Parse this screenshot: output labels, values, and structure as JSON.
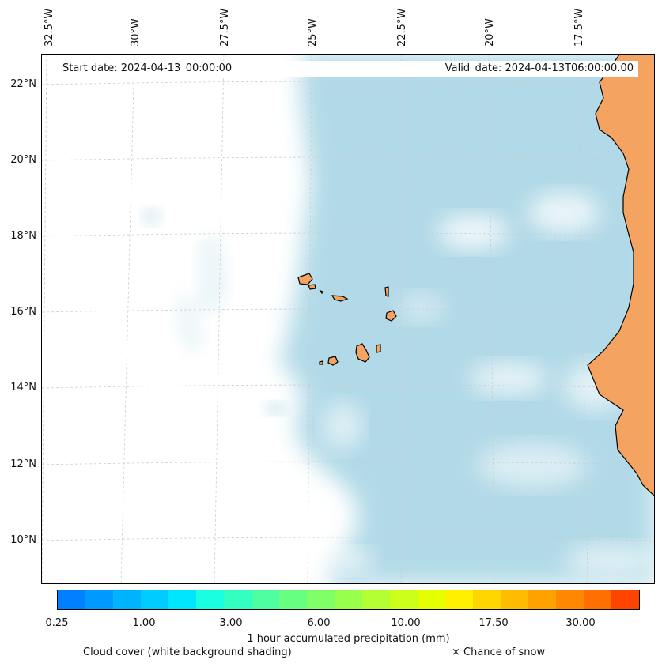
{
  "map": {
    "start_date_text": "Start date: 2024-04-13_00:00:00",
    "valid_date_text": "Valid_date: 2024-04-13T06:00:00.00",
    "longitude_labels": [
      "32.5°W",
      "30°W",
      "27.5°W",
      "25°W",
      "22.5°W",
      "20°W",
      "17.5°W"
    ],
    "latitude_labels": [
      "22°N",
      "20°N",
      "18°N",
      "16°N",
      "14°N",
      "12°N",
      "10°N"
    ],
    "land_color": "#f4a460",
    "cloud_color": "#add8e6",
    "gridline_color": "#cccccc"
  },
  "colorbar": {
    "title": "1 hour accumulated precipitation (mm)",
    "tick_labels": [
      "0.25",
      "1.00",
      "3.00",
      "6.00",
      "10.00",
      "17.50",
      "30.00"
    ],
    "colors": [
      "#0080ff",
      "#0099ff",
      "#00b3ff",
      "#00ccff",
      "#00e6ff",
      "#19ffe0",
      "#33ffc0",
      "#4dffa0",
      "#66ff80",
      "#80ff66",
      "#99ff4d",
      "#b3ff33",
      "#ccff19",
      "#e6ff00",
      "#fff000",
      "#ffd600",
      "#ffbc00",
      "#ffa200",
      "#ff8800",
      "#ff6e00",
      "#ff4400"
    ]
  },
  "legend": {
    "cloud_cover": "Cloud cover (white background shading)",
    "snow": "× Chance of snow"
  }
}
